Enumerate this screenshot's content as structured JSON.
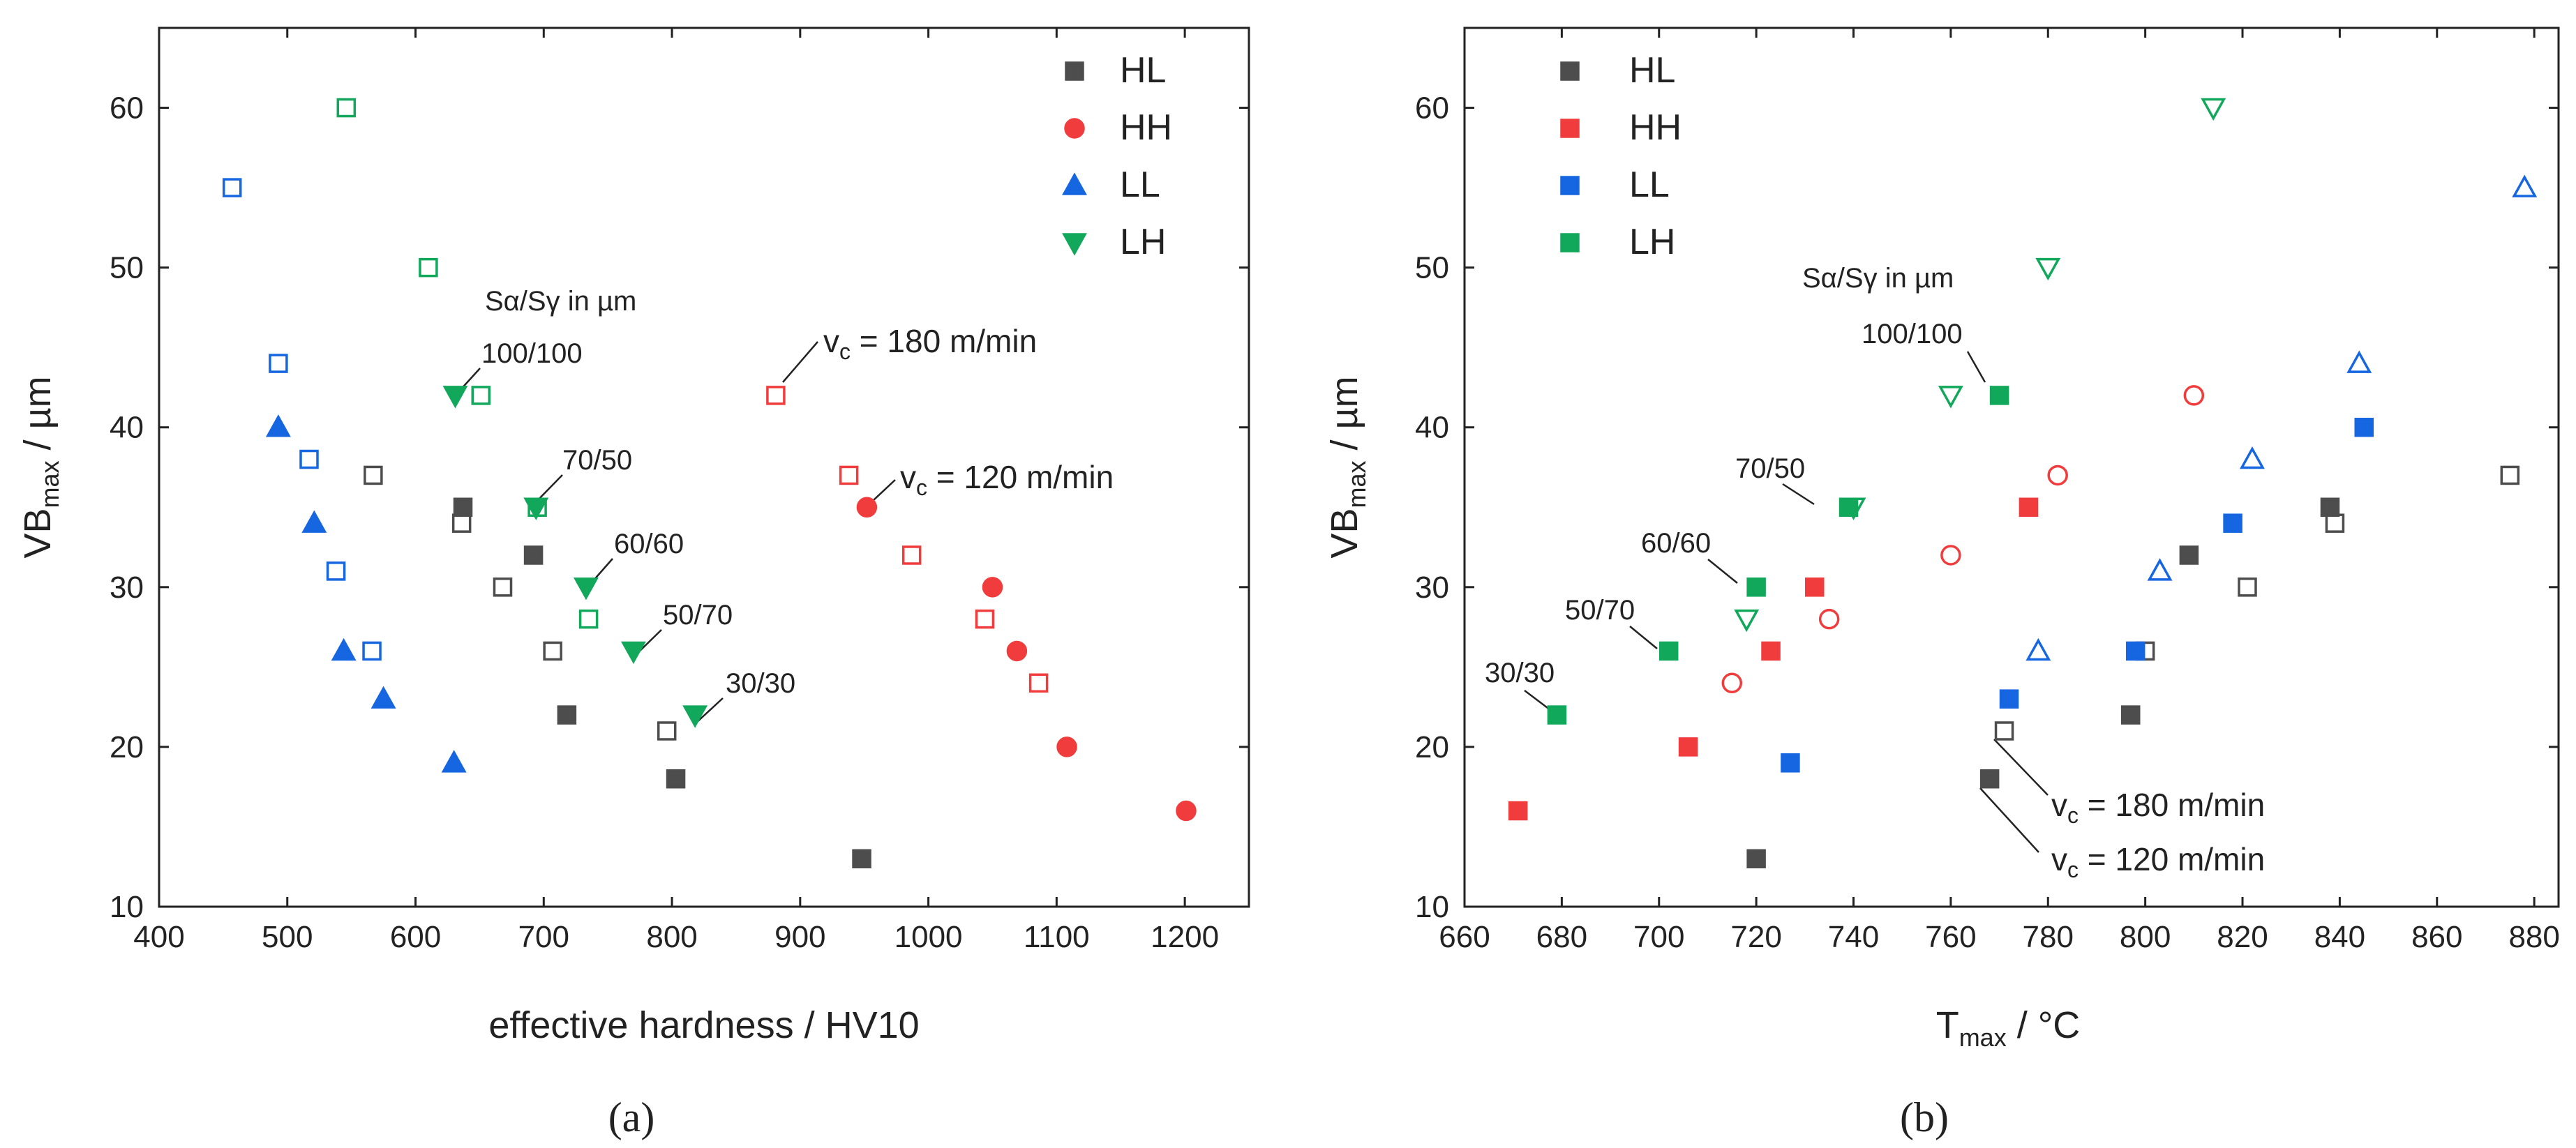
{
  "figure": {
    "panel_a_label": "(a)",
    "panel_b_label": "(b)"
  },
  "colors": {
    "HL": "#4d4d4d",
    "HH": "#f03c3c",
    "LL": "#1566e0",
    "LH": "#12a85c"
  },
  "chart_data": [
    {
      "id": "a",
      "type": "scatter",
      "panel_label": "(a)",
      "xlabel": "effective hardness / HV10",
      "ylabel": "VB_max / µm",
      "xlim": [
        400,
        1250
      ],
      "ylim": [
        10,
        65
      ],
      "xticks": [
        400,
        500,
        600,
        700,
        800,
        900,
        1000,
        1100,
        1200
      ],
      "yticks": [
        10,
        20,
        30,
        40,
        50,
        60
      ],
      "legend": [
        {
          "name": "HL",
          "marker": "square"
        },
        {
          "name": "HH",
          "marker": "circle"
        },
        {
          "name": "LL",
          "marker": "triangle-up"
        },
        {
          "name": "LH",
          "marker": "triangle-down"
        }
      ],
      "series": [
        {
          "name": "HL",
          "marker": "square",
          "fill": "filled",
          "points": [
            [
              637,
              35
            ],
            [
              692,
              32
            ],
            [
              718,
              22
            ],
            [
              803,
              18
            ],
            [
              948,
              13
            ]
          ]
        },
        {
          "name": "HL",
          "marker": "square",
          "fill": "open",
          "points": [
            [
              567,
              37
            ],
            [
              636,
              34
            ],
            [
              668,
              30
            ],
            [
              707,
              26
            ],
            [
              796,
              21
            ]
          ]
        },
        {
          "name": "HH",
          "marker": "circle",
          "fill": "filled",
          "points": [
            [
              952,
              35
            ],
            [
              1050,
              30
            ],
            [
              1069,
              26
            ],
            [
              1108,
              20
            ],
            [
              1201,
              16
            ]
          ]
        },
        {
          "name": "HH",
          "marker": "square",
          "fill": "open",
          "points": [
            [
              881,
              42
            ],
            [
              938,
              37
            ],
            [
              987,
              32
            ],
            [
              1044,
              28
            ],
            [
              1086,
              24
            ]
          ]
        },
        {
          "name": "LL",
          "marker": "triangle-up",
          "fill": "filled",
          "points": [
            [
              493,
              40
            ],
            [
              521,
              34
            ],
            [
              544,
              26
            ],
            [
              575,
              23
            ],
            [
              630,
              19
            ]
          ]
        },
        {
          "name": "LL",
          "marker": "square",
          "fill": "open",
          "points": [
            [
              457,
              55
            ],
            [
              493,
              44
            ],
            [
              517,
              38
            ],
            [
              538,
              31
            ],
            [
              566,
              26
            ]
          ]
        },
        {
          "name": "LH",
          "marker": "triangle-down",
          "fill": "filled",
          "points": [
            [
              631,
              42
            ],
            [
              694,
              35
            ],
            [
              733,
              30
            ],
            [
              770,
              26
            ],
            [
              818,
              22
            ]
          ]
        },
        {
          "name": "LH",
          "marker": "square",
          "fill": "open",
          "points": [
            [
              546,
              60
            ],
            [
              610,
              50
            ],
            [
              651,
              42
            ],
            [
              695,
              35
            ],
            [
              735,
              28
            ]
          ]
        }
      ],
      "annotations": [
        {
          "text": "Sα/Sγ in µm"
        },
        {
          "text": "100/100"
        },
        {
          "text": "70/50"
        },
        {
          "text": "60/60"
        },
        {
          "text": "50/70"
        },
        {
          "text": "30/30"
        }
      ],
      "vc_annotations": [
        {
          "prefix": "v",
          "sub": "c",
          "rest": " = 180 m/min"
        },
        {
          "prefix": "v",
          "sub": "c",
          "rest": " = 120 m/min"
        }
      ]
    },
    {
      "id": "b",
      "type": "scatter",
      "panel_label": "(b)",
      "xlabel": "T_max / °C",
      "ylabel": "VB_max / µm",
      "xlim": [
        660,
        885
      ],
      "ylim": [
        10,
        65
      ],
      "xticks": [
        660,
        680,
        700,
        720,
        740,
        760,
        780,
        800,
        820,
        840,
        860,
        880
      ],
      "yticks": [
        10,
        20,
        30,
        40,
        50,
        60
      ],
      "legend": [
        {
          "name": "HL",
          "marker": "square"
        },
        {
          "name": "HH",
          "marker": "square"
        },
        {
          "name": "LL",
          "marker": "square"
        },
        {
          "name": "LH",
          "marker": "square"
        }
      ],
      "series": [
        {
          "name": "HL",
          "marker": "square",
          "fill": "filled",
          "points": [
            [
              838,
              35
            ],
            [
              809,
              32
            ],
            [
              797,
              22
            ],
            [
              768,
              18
            ],
            [
              720,
              13
            ]
          ]
        },
        {
          "name": "HL",
          "marker": "square",
          "fill": "open",
          "points": [
            [
              875,
              37
            ],
            [
              839,
              34
            ],
            [
              821,
              30
            ],
            [
              800,
              26
            ],
            [
              771,
              21
            ]
          ]
        },
        {
          "name": "HH",
          "marker": "square",
          "fill": "filled",
          "points": [
            [
              776,
              35
            ],
            [
              732,
              30
            ],
            [
              723,
              26
            ],
            [
              706,
              20
            ],
            [
              671,
              16
            ]
          ]
        },
        {
          "name": "HH",
          "marker": "circle",
          "fill": "open",
          "points": [
            [
              810,
              42
            ],
            [
              782,
              37
            ],
            [
              760,
              32
            ],
            [
              735,
              28
            ],
            [
              715,
              24
            ]
          ]
        },
        {
          "name": "LL",
          "marker": "square",
          "fill": "filled",
          "points": [
            [
              845,
              40
            ],
            [
              818,
              34
            ],
            [
              798,
              26
            ],
            [
              772,
              23
            ],
            [
              727,
              19
            ]
          ]
        },
        {
          "name": "LL",
          "marker": "triangle-up",
          "fill": "open",
          "points": [
            [
              878,
              55
            ],
            [
              844,
              44
            ],
            [
              822,
              38
            ],
            [
              803,
              31
            ],
            [
              778,
              26
            ]
          ]
        },
        {
          "name": "LH",
          "marker": "square",
          "fill": "filled",
          "points": [
            [
              770,
              42
            ],
            [
              739,
              35
            ],
            [
              720,
              30
            ],
            [
              702,
              26
            ],
            [
              679,
              22
            ]
          ]
        },
        {
          "name": "LH",
          "marker": "triangle-down",
          "fill": "open",
          "points": [
            [
              814,
              60
            ],
            [
              780,
              50
            ],
            [
              760,
              42
            ],
            [
              740,
              35
            ],
            [
              718,
              28
            ]
          ]
        }
      ],
      "annotations": [
        {
          "text": "Sα/Sγ in µm"
        },
        {
          "text": "100/100"
        },
        {
          "text": "70/50"
        },
        {
          "text": "60/60"
        },
        {
          "text": "50/70"
        },
        {
          "text": "30/30"
        }
      ],
      "vc_annotations": [
        {
          "prefix": "v",
          "sub": "c",
          "rest": " = 180 m/min"
        },
        {
          "prefix": "v",
          "sub": "c",
          "rest": " = 120 m/min"
        }
      ]
    }
  ]
}
